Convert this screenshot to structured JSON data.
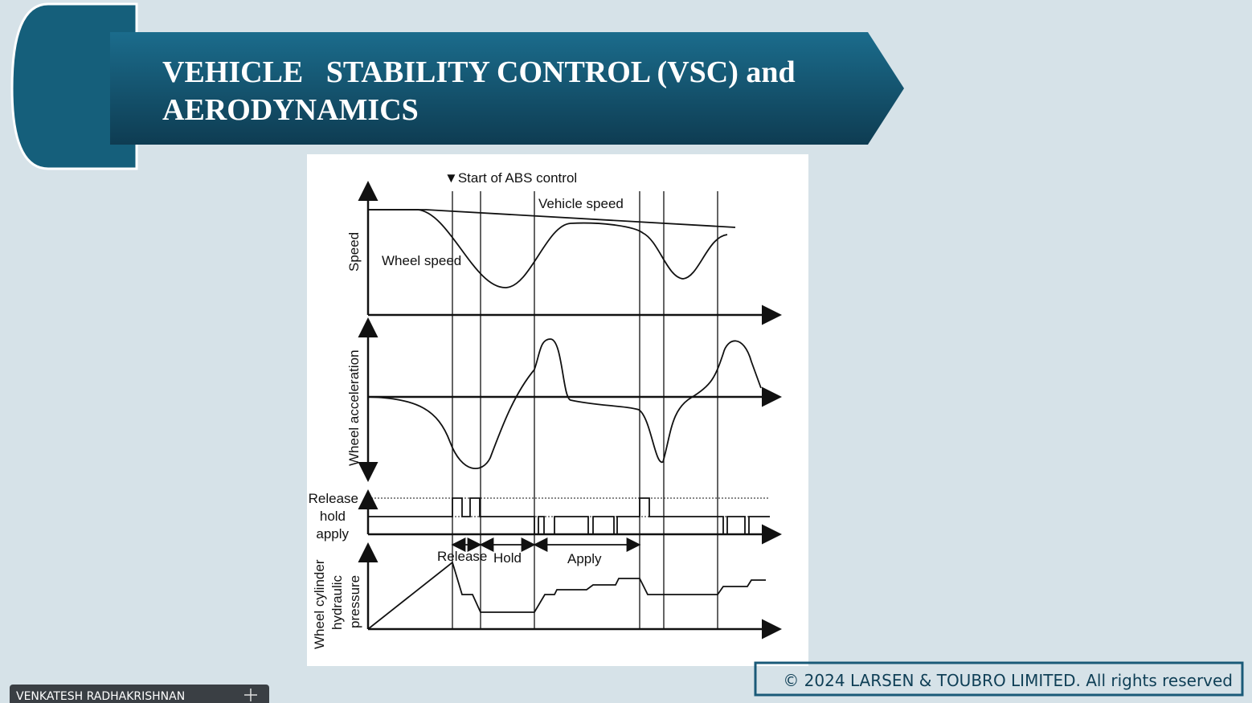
{
  "slide": {
    "title_line1": "VEHICLE   STABILITY CONTROL (VSC) and",
    "title_line2": "AERODYNAMICS"
  },
  "diagram": {
    "start_label": "▼Start of ABS control",
    "vehicle_speed": "Vehicle speed",
    "wheel_speed": "Wheel speed",
    "axis_speed": "Speed",
    "axis_acceleration": "Wheel acceleration",
    "axis_pressure": [
      "Wheel cylinder",
      "hydraulic",
      "pressure"
    ],
    "state_labels": [
      "Release",
      "hold",
      "apply"
    ],
    "phase_labels": [
      "Release",
      "Hold",
      "Apply"
    ]
  },
  "footer": {
    "copyright": "© 2024 LARSEN & TOUBRO LIMITED. All rights reserved"
  },
  "participant": {
    "name": "VENKATESH RADHAKRISHNAN"
  }
}
